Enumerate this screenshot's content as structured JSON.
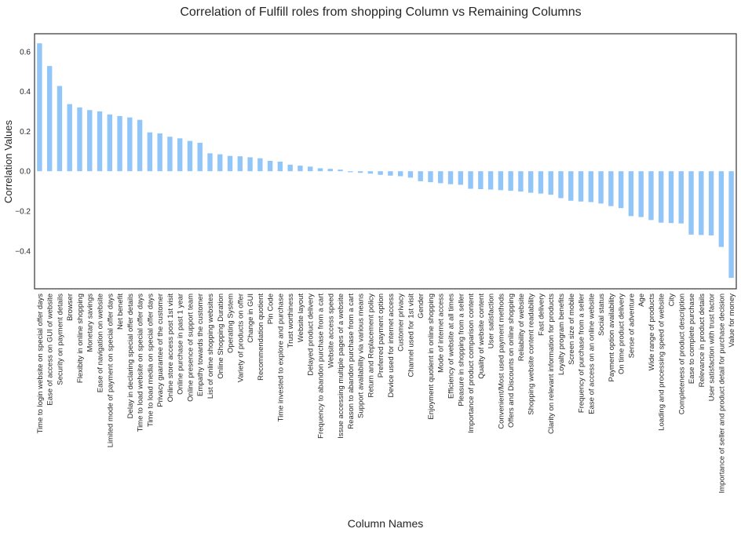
{
  "chart_data": {
    "type": "bar",
    "title": "Correlation of Fulfill roles from shopping Column vs Remaining Columns",
    "xlabel": "Column Names",
    "ylabel": "Correlation Values",
    "ylim": [
      -0.59,
      0.69
    ],
    "yticks": [
      -0.4,
      -0.2,
      0.0,
      0.2,
      0.4,
      0.6
    ],
    "ytick_labels": [
      "−0.4",
      "−0.2",
      "0.0",
      "0.2",
      "0.4",
      "0.6"
    ],
    "grid": false,
    "bar_color": "#92c6f8",
    "categories": [
      "Time to login website on special offer days",
      "Ease of access on GUI of website",
      "Security on payment details",
      "Browser",
      "Flexibity in online shopping",
      "Monetary savings",
      "Ease of navigation on website",
      "Limited mode of payment on special offer days",
      "Net benefit",
      "Delay in declaring special offer details",
      "Time to load website on special offer days",
      "Time to load media on special offer days",
      "Privacy guarantee of the customer",
      "Online store access post 1st visit",
      "Online purchase in past 1 year",
      "Online presence of support team",
      "Empathy towards the customer",
      "List of online shopping websites",
      "Online Shopping Duration",
      "Operating System",
      "Variety of products on offer",
      "Change in GUI",
      "Recommendation quotient",
      "Pin Code",
      "Time invested to explore and purchase",
      "Trust worthiness",
      "Website layout",
      "Delayed product delivery",
      "Frequency to abandon purchase from a cart",
      "Website access speed",
      "Issue accessing multiple pages of a website",
      "Reason to abandon purchase from a cart",
      "Support availability via various means",
      "Return and Replacement policy",
      "Preferred payment option",
      "Device used for internet access",
      "Customer privacy",
      "Channel used for 1st visit",
      "Gender",
      "Enjoyment quotient in online shopping",
      "Mode of internet access",
      "Efficiency of website at all times",
      "Pleasure in shopping from a seller",
      "Importance of product comparison content",
      "Quality of website content",
      "User satisfaction",
      "Convenient/Most used payment methods",
      "Offers and Discounts on online shopping",
      "Reliability of website",
      "Shopping website content readability",
      "Fast delivery",
      "Clarity on relevant information for products",
      "Loyalty program benefits",
      "Screen size of mobile",
      "Frequency of purchase from a seller",
      "Ease of access on an online website",
      "Social status",
      "Payment option availability",
      "On time product delivery",
      "Sense of adventure",
      "Age",
      "Wide range of products",
      "Loading and processing speed of website",
      "City",
      "Completeness of product description",
      "Ease to complete purchase",
      "Relevance in product details",
      "User satisfaction with trust factor",
      "Importance of seller and product detail for purchase decision",
      "Value for money"
    ],
    "values": [
      0.642,
      0.528,
      0.428,
      0.337,
      0.32,
      0.307,
      0.3,
      0.285,
      0.277,
      0.27,
      0.258,
      0.195,
      0.19,
      0.173,
      0.165,
      0.152,
      0.143,
      0.09,
      0.085,
      0.077,
      0.075,
      0.07,
      0.065,
      0.052,
      0.048,
      0.033,
      0.028,
      0.023,
      0.015,
      0.012,
      0.008,
      -0.005,
      -0.008,
      -0.012,
      -0.018,
      -0.022,
      -0.025,
      -0.032,
      -0.05,
      -0.055,
      -0.06,
      -0.065,
      -0.068,
      -0.088,
      -0.09,
      -0.092,
      -0.095,
      -0.098,
      -0.102,
      -0.108,
      -0.112,
      -0.118,
      -0.135,
      -0.148,
      -0.152,
      -0.155,
      -0.162,
      -0.175,
      -0.185,
      -0.225,
      -0.23,
      -0.245,
      -0.258,
      -0.26,
      -0.262,
      -0.318,
      -0.32,
      -0.322,
      -0.38,
      -0.535
    ]
  }
}
